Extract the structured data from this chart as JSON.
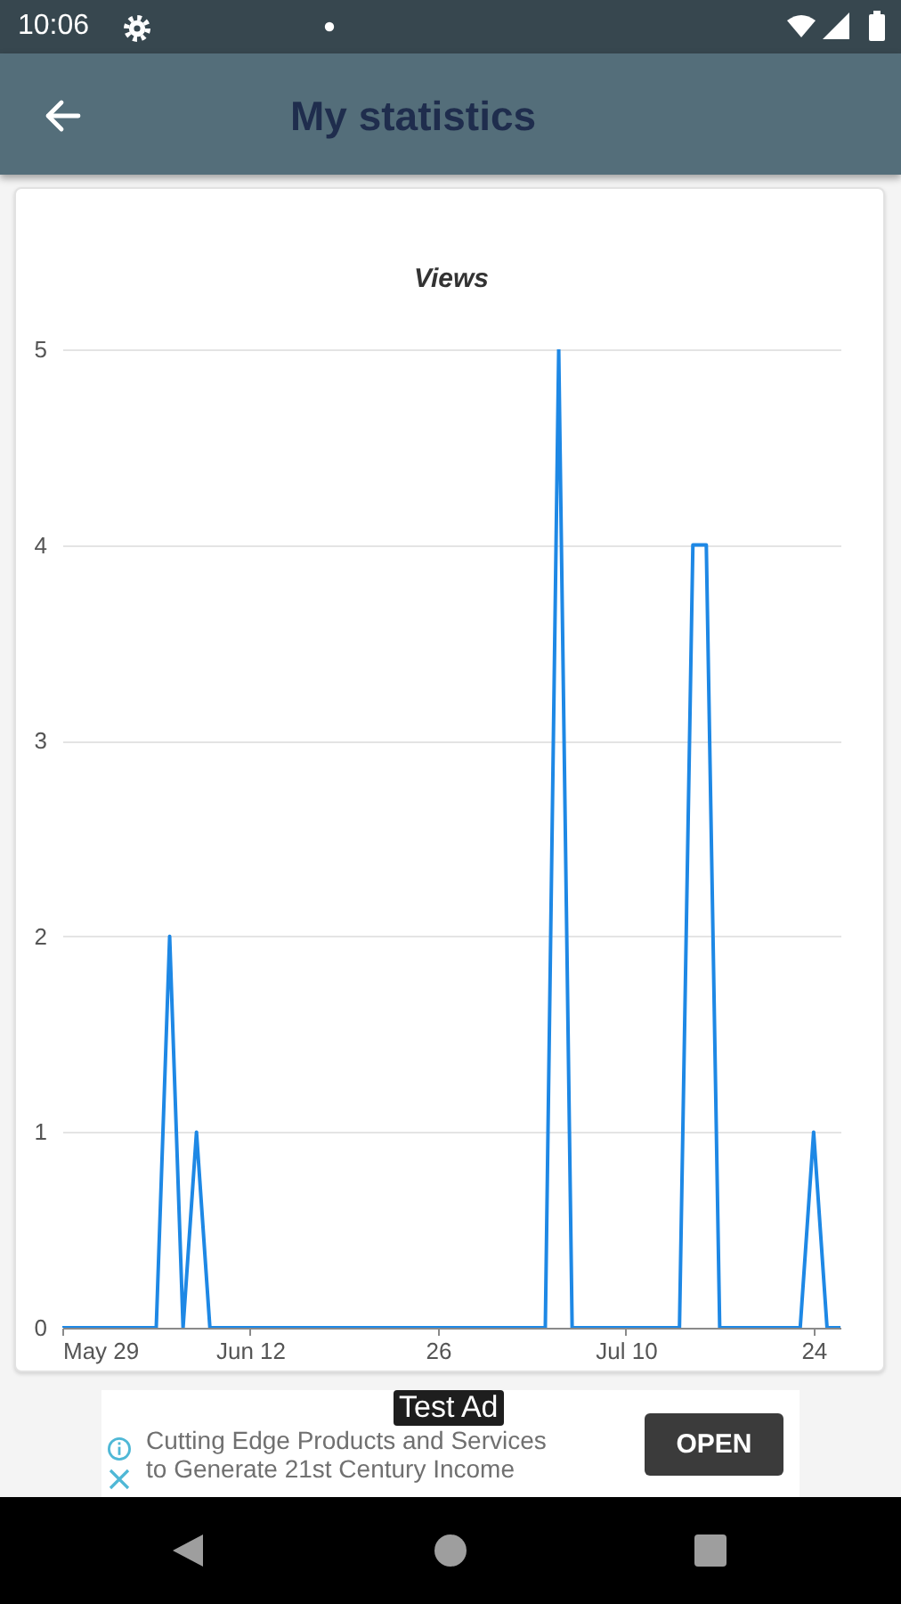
{
  "chart_data": {
    "type": "line",
    "title": "Views",
    "x": [
      "--05-29",
      "--06-05",
      "--06-06",
      "--06-07",
      "--06-08",
      "--06-09",
      "--07-04",
      "--07-05",
      "--07-06",
      "--07-14",
      "--07-15",
      "--07-16",
      "--07-17",
      "--07-23",
      "--07-24",
      "--07-25",
      "--07-26"
    ],
    "series": [
      {
        "color": "#1e88e5",
        "values": [
          0,
          0,
          2,
          0,
          1,
          0,
          0,
          5,
          0,
          0,
          4,
          4,
          0,
          0,
          1,
          0,
          0
        ]
      }
    ],
    "xlim": [
      "--05-29",
      "--07-26"
    ],
    "xticks": [
      {
        "value": "--05-29",
        "label": "May 29"
      },
      {
        "value": "--06-12",
        "label": "Jun 12"
      },
      {
        "value": "--06-26",
        "label": "26"
      },
      {
        "value": "--07-10",
        "label": "Jul 10"
      },
      {
        "value": "--07-24",
        "label": "24"
      }
    ],
    "ylim": [
      0,
      5
    ],
    "yticks": [
      0,
      1,
      2,
      3,
      4,
      5
    ],
    "grid": "y",
    "line_style": "solid",
    "annotations": [
      "10:06",
      "My statistics",
      "Test Ad",
      "Cutting Edge Products and Services to Generate 21st Century Income",
      "OPEN"
    ]
  }
}
